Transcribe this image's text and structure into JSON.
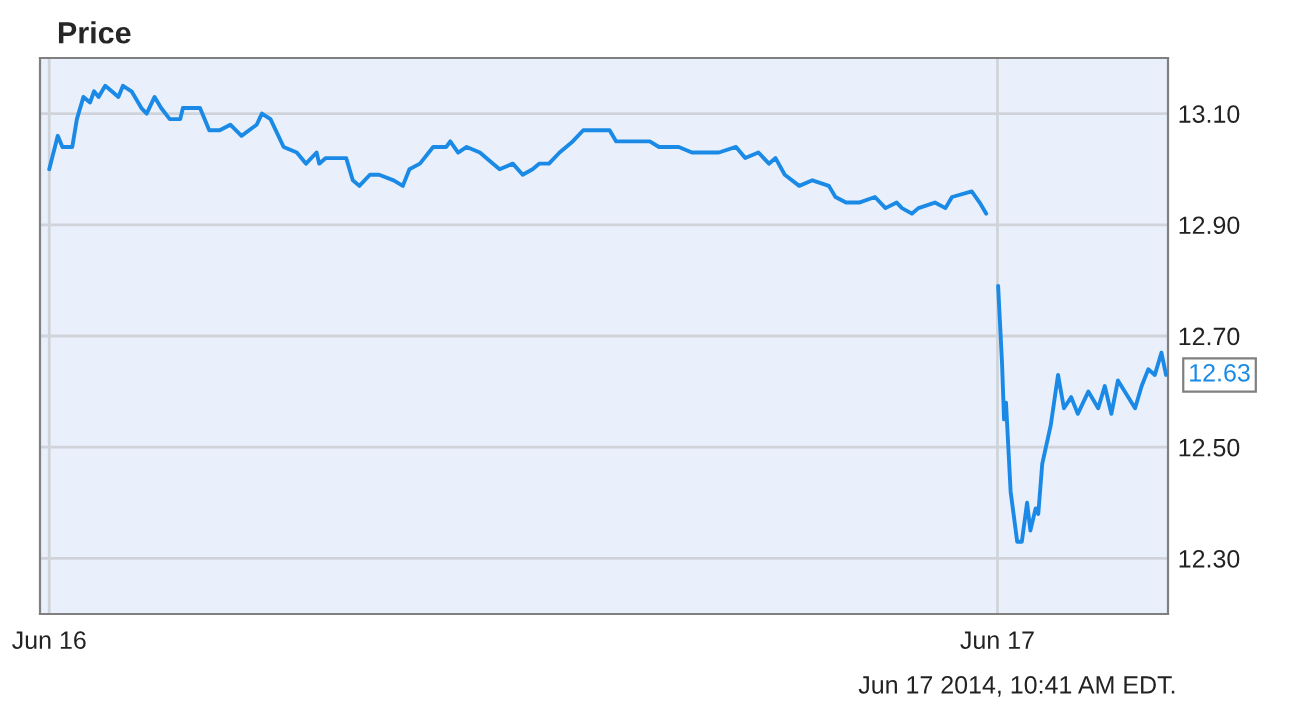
{
  "chart_data": {
    "type": "line",
    "title": "Price",
    "x": [
      "2014-06-16T00:00",
      "2014-06-16T00:13",
      "2014-06-16T00:20",
      "2014-06-16T00:35",
      "2014-06-16T00:42",
      "2014-06-16T00:52",
      "2014-06-16T01:02",
      "2014-06-16T01:08",
      "2014-06-16T01:15",
      "2014-06-16T01:25",
      "2014-06-16T01:35",
      "2014-06-16T01:45",
      "2014-06-16T01:52",
      "2014-06-16T02:05",
      "2014-06-16T02:20",
      "2014-06-16T02:28",
      "2014-06-16T02:40",
      "2014-06-16T02:50",
      "2014-06-16T03:03",
      "2014-06-16T03:19",
      "2014-06-16T03:23",
      "2014-06-16T03:49",
      "2014-06-16T04:03",
      "2014-06-16T04:19",
      "2014-06-16T04:35",
      "2014-06-16T04:52",
      "2014-06-16T05:15",
      "2014-06-16T05:23",
      "2014-06-16T05:36",
      "2014-06-16T05:56",
      "2014-06-16T06:16",
      "2014-06-16T06:30",
      "2014-06-16T06:46",
      "2014-06-16T06:50",
      "2014-06-16T07:00",
      "2014-06-16T07:31",
      "2014-06-16T07:41",
      "2014-06-16T07:51",
      "2014-06-16T08:07",
      "2014-06-16T08:21",
      "2014-06-16T08:43",
      "2014-06-16T08:57",
      "2014-06-16T09:07",
      "2014-06-16T09:23",
      "2014-06-16T09:43",
      "2014-06-16T10:03",
      "2014-06-16T10:09",
      "2014-06-16T10:21",
      "2014-06-16T10:34",
      "2014-06-16T10:54",
      "2014-06-16T11:14",
      "2014-06-16T11:24",
      "2014-06-16T11:44",
      "2014-06-16T11:59",
      "2014-06-16T12:14",
      "2014-06-16T12:24",
      "2014-06-16T12:39",
      "2014-06-16T12:55",
      "2014-06-16T13:15",
      "2014-06-16T13:31",
      "2014-06-16T14:11",
      "2014-06-16T14:21",
      "2014-06-16T14:41",
      "2014-06-16T15:12",
      "2014-06-16T15:26",
      "2014-06-16T15:56",
      "2014-06-16T16:16",
      "2014-06-16T16:36",
      "2014-06-16T16:57",
      "2014-06-16T17:23",
      "2014-06-16T17:37",
      "2014-06-16T17:57",
      "2014-06-16T18:13",
      "2014-06-16T18:23",
      "2014-06-16T18:37",
      "2014-06-16T18:59",
      "2014-06-16T19:19",
      "2014-06-16T19:44",
      "2014-06-16T19:54",
      "2014-06-16T20:10",
      "2014-06-16T20:30",
      "2014-06-16T20:54",
      "2014-06-16T21:10",
      "2014-06-16T21:27",
      "2014-06-16T21:35",
      "2014-06-16T21:50",
      "2014-06-16T22:00",
      "2014-06-16T22:25",
      "2014-06-16T22:41",
      "2014-06-16T22:51",
      "2014-06-16T23:21",
      "2014-06-16T23:33",
      "2014-06-16T23:43",
      "2014-06-16T23:51",
      "2014-06-17T00:01",
      "2014-06-17T00:07",
      "2014-06-17T00:10",
      "2014-06-17T00:13",
      "2014-06-17T00:20",
      "2014-06-17T00:30",
      "2014-06-17T00:37",
      "2014-06-17T00:45",
      "2014-06-17T00:50",
      "2014-06-17T00:58",
      "2014-06-17T01:02",
      "2014-06-17T01:08",
      "2014-06-17T01:21",
      "2014-06-17T01:32",
      "2014-06-17T01:41",
      "2014-06-17T01:52",
      "2014-06-17T02:02",
      "2014-06-17T02:18",
      "2014-06-17T02:33",
      "2014-06-17T02:43",
      "2014-06-17T02:53",
      "2014-06-17T03:03",
      "2014-06-17T03:29",
      "2014-06-17T03:39",
      "2014-06-17T03:49",
      "2014-06-17T03:59",
      "2014-06-17T04:09",
      "2014-06-17T04:16"
    ],
    "series": [
      {
        "color": "#1a8ae6",
        "values": [
          13.0,
          13.06,
          13.04,
          13.04,
          13.09,
          13.13,
          13.12,
          13.14,
          13.13,
          13.15,
          13.14,
          13.13,
          13.15,
          13.14,
          13.11,
          13.1,
          13.13,
          13.11,
          13.09,
          13.09,
          13.11,
          13.11,
          13.07,
          13.07,
          13.08,
          13.06,
          13.08,
          13.1,
          13.09,
          13.04,
          13.03,
          13.01,
          13.03,
          13.01,
          13.02,
          13.02,
          12.98,
          12.97,
          12.99,
          12.99,
          12.98,
          12.97,
          13.0,
          13.01,
          13.04,
          13.04,
          13.05,
          13.03,
          13.04,
          13.03,
          13.01,
          13.0,
          13.01,
          12.99,
          13.0,
          13.01,
          13.01,
          13.03,
          13.05,
          13.07,
          13.07,
          13.05,
          13.05,
          13.05,
          13.04,
          13.04,
          13.03,
          13.03,
          13.03,
          13.04,
          13.02,
          13.03,
          13.01,
          13.02,
          12.99,
          12.97,
          12.98,
          12.97,
          12.95,
          12.94,
          12.94,
          12.95,
          12.93,
          12.94,
          12.93,
          12.92,
          12.93,
          12.94,
          12.93,
          12.95,
          12.96,
          12.94,
          12.92,
          null,
          12.79,
          12.65,
          12.55,
          12.58,
          12.42,
          12.33,
          12.33,
          12.4,
          12.35,
          12.39,
          12.38,
          12.47,
          12.54,
          12.63,
          12.57,
          12.59,
          12.56,
          12.6,
          12.57,
          12.61,
          12.56,
          12.62,
          12.57,
          12.61,
          12.64,
          12.63,
          12.67,
          12.63
        ]
      }
    ],
    "xlim": [
      "2014-06-15T23:46",
      "2014-06-17T04:19"
    ],
    "xticks": [
      {
        "value": "2014-06-16",
        "label": "Jun 16"
      },
      {
        "value": "2014-06-17",
        "label": "Jun 17"
      }
    ],
    "ylim": [
      12.2,
      13.2
    ],
    "yticks": [
      {
        "value": 12.3,
        "label": "12.30"
      },
      {
        "value": 12.5,
        "label": "12.50"
      },
      {
        "value": 12.7,
        "label": "12.70"
      },
      {
        "value": 12.9,
        "label": "12.90"
      },
      {
        "value": 13.1,
        "label": "13.10"
      }
    ],
    "grid": true,
    "line_style": "solid",
    "marker": "none",
    "annotations": [
      {
        "text": "12.63",
        "x": "2014-06-17T04:16",
        "y": 12.63
      },
      "Jun 17 2014, 10:41 AM EDT."
    ]
  }
}
